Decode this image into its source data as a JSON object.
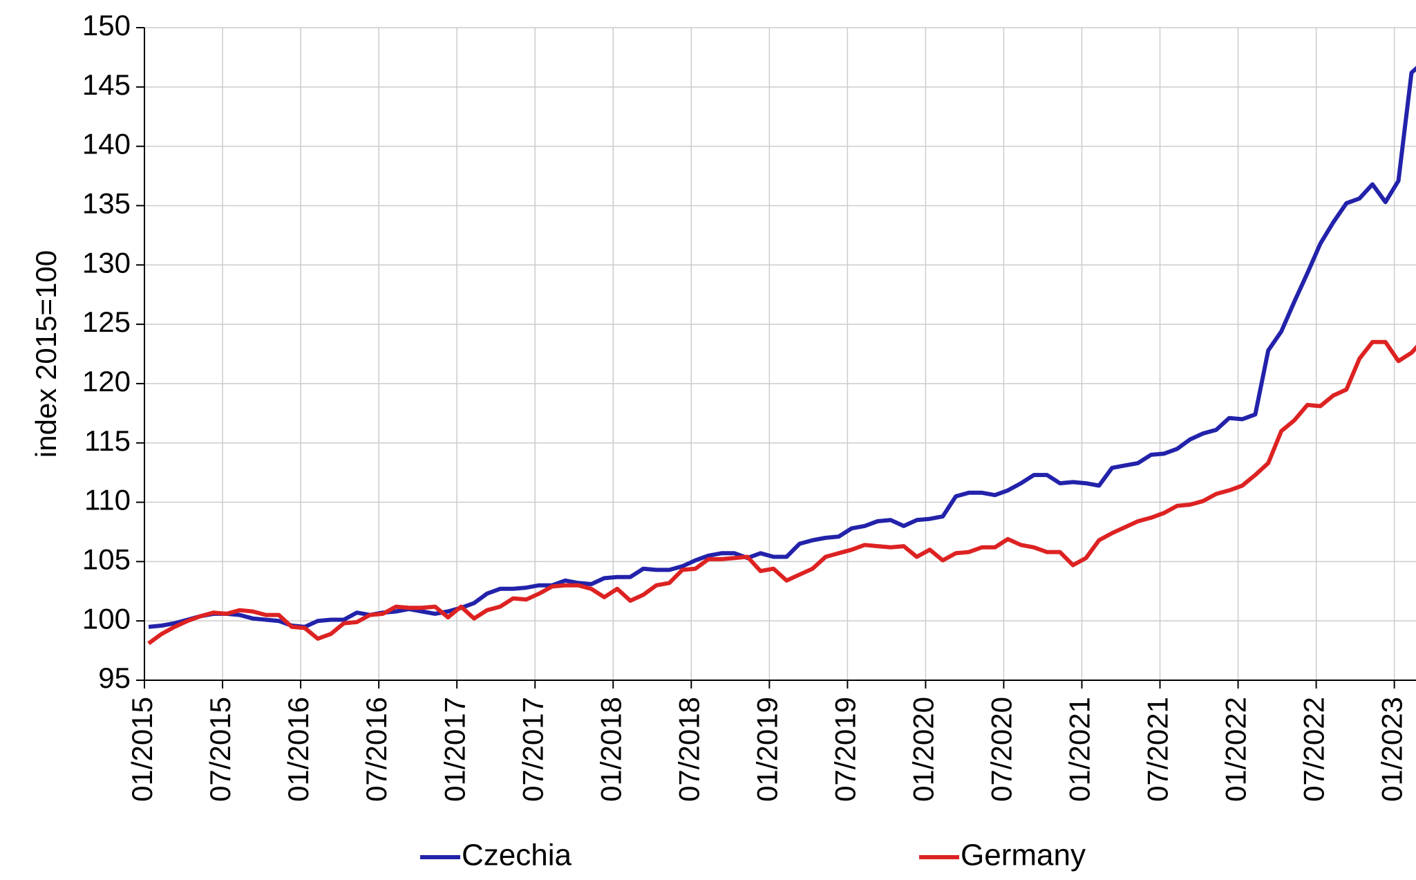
{
  "chart_data": {
    "type": "line",
    "y_label": "index 2015=100",
    "categories": [
      "01/2015",
      null,
      null,
      null,
      null,
      null,
      "07/2015",
      null,
      null,
      null,
      null,
      null,
      "01/2016",
      null,
      null,
      null,
      null,
      null,
      "07/2016",
      null,
      null,
      null,
      null,
      null,
      "01/2017",
      null,
      null,
      null,
      null,
      null,
      "07/2017",
      null,
      null,
      null,
      null,
      null,
      "01/2018",
      null,
      null,
      null,
      null,
      null,
      "07/2018",
      null,
      null,
      null,
      null,
      null,
      "01/2019",
      null,
      null,
      null,
      null,
      null,
      "07/2019",
      null,
      null,
      null,
      null,
      null,
      "01/2020",
      null,
      null,
      null,
      null,
      null,
      "07/2020",
      null,
      null,
      null,
      null,
      null,
      "01/2021",
      null,
      null,
      null,
      null,
      null,
      "07/2021",
      null,
      null,
      null,
      null,
      null,
      "01/2022",
      null,
      null,
      null,
      null,
      null,
      "07/2022",
      null,
      null,
      null,
      null,
      null,
      "01/2023",
      null,
      null
    ],
    "series": [
      {
        "name": "Czechia",
        "color": "#2222aa",
        "values": [
          99.5,
          99.6,
          99.8,
          100.1,
          100.4,
          100.6,
          100.6,
          100.5,
          100.2,
          100.1,
          100.0,
          99.6,
          99.5,
          100.0,
          100.1,
          100.1,
          100.7,
          100.5,
          100.7,
          100.8,
          101.0,
          100.8,
          100.6,
          100.8,
          101.1,
          101.5,
          102.3,
          102.7,
          102.7,
          102.8,
          103.0,
          103.0,
          103.4,
          103.2,
          103.1,
          103.6,
          103.7,
          103.7,
          104.4,
          104.3,
          104.3,
          104.6,
          105.1,
          105.5,
          105.7,
          105.7,
          105.3,
          105.7,
          105.4,
          105.4,
          106.5,
          106.8,
          107.0,
          107.1,
          107.8,
          108.0,
          108.4,
          108.5,
          108.0,
          108.5,
          108.6,
          108.8,
          110.5,
          110.8,
          110.8,
          110.6,
          111.0,
          111.6,
          112.3,
          112.3,
          111.6,
          111.7,
          111.6,
          111.4,
          112.9,
          113.1,
          113.3,
          114.0,
          114.1,
          114.5,
          115.3,
          115.8,
          116.1,
          117.1,
          117.0,
          117.4,
          122.8,
          124.4,
          126.9,
          129.3,
          131.8,
          133.6,
          135.2,
          135.6,
          136.8,
          135.3,
          137.1,
          146.2,
          147.2
        ]
      },
      {
        "name": "Germany",
        "color": "#dd2222",
        "values": [
          98.1,
          98.9,
          99.5,
          100.0,
          100.4,
          100.7,
          100.6,
          100.9,
          100.8,
          100.5,
          100.5,
          99.5,
          99.4,
          98.5,
          98.9,
          99.8,
          99.9,
          100.5,
          100.6,
          101.2,
          101.1,
          101.1,
          101.2,
          100.3,
          101.2,
          100.2,
          100.9,
          101.2,
          101.9,
          101.8,
          102.3,
          102.9,
          103.0,
          103.0,
          102.7,
          102.0,
          102.7,
          101.7,
          102.2,
          103.0,
          103.2,
          104.3,
          104.4,
          105.2,
          105.2,
          105.3,
          105.4,
          104.2,
          104.4,
          103.4,
          103.9,
          104.4,
          105.4,
          105.7,
          106.0,
          106.4,
          106.3,
          106.2,
          106.3,
          105.4,
          106.0,
          105.1,
          105.7,
          105.8,
          106.2,
          106.2,
          106.9,
          106.4,
          106.2,
          105.8,
          105.8,
          104.7,
          105.3,
          106.8,
          107.4,
          107.9,
          108.4,
          108.7,
          109.1,
          109.7,
          109.8,
          110.1,
          110.7,
          111.0,
          111.4,
          112.3,
          113.3,
          116.0,
          116.9,
          118.2,
          118.1,
          119.0,
          119.5,
          122.1,
          123.5,
          123.5,
          121.9,
          122.6,
          123.8
        ]
      }
    ],
    "ylim": [
      95,
      150
    ],
    "yticks": [
      95,
      100,
      105,
      110,
      115,
      120,
      125,
      130,
      135,
      140,
      145,
      150
    ],
    "grid": true,
    "legend": "bottom"
  }
}
